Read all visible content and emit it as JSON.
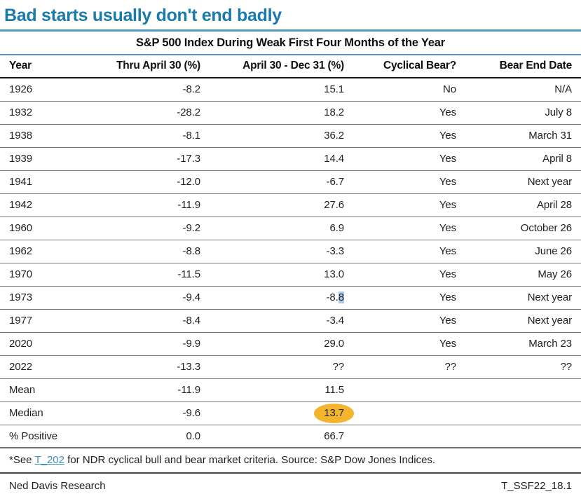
{
  "page": {
    "title": "Bad starts usually don't end badly"
  },
  "colors": {
    "accent_blue": "#1A7AA9",
    "rule_blue": "#5598BE",
    "circle_highlight": "#F4B42E",
    "selection_highlight": "#AACBE9",
    "link_blue": "#4190BC"
  },
  "chart_data": {
    "type": "table",
    "title": "S&P 500 Index During Weak First Four Months of the Year",
    "columns": [
      "Year",
      "Thru April 30 (%)",
      "April 30 - Dec 31 (%)",
      "Cyclical Bear?",
      "Bear End Date"
    ],
    "rows": [
      [
        "1926",
        "-8.2",
        "15.1",
        "No",
        "N/A"
      ],
      [
        "1932",
        "-28.2",
        "18.2",
        "Yes",
        "July 8"
      ],
      [
        "1938",
        "-8.1",
        "36.2",
        "Yes",
        "March 31"
      ],
      [
        "1939",
        "-17.3",
        "14.4",
        "Yes",
        "April 8"
      ],
      [
        "1941",
        "-12.0",
        "-6.7",
        "Yes",
        "Next year"
      ],
      [
        "1942",
        "-11.9",
        "27.6",
        "Yes",
        "April 28"
      ],
      [
        "1960",
        "-9.2",
        "6.9",
        "Yes",
        "October 26"
      ],
      [
        "1962",
        "-8.8",
        "-3.3",
        "Yes",
        "June 26"
      ],
      [
        "1970",
        "-11.5",
        "13.0",
        "Yes",
        "May 26"
      ],
      [
        "1973",
        "-9.4",
        "-8.8",
        "Yes",
        "Next year"
      ],
      [
        "1977",
        "-8.4",
        "-3.4",
        "Yes",
        "Next year"
      ],
      [
        "2020",
        "-9.9",
        "29.0",
        "Yes",
        "March 23"
      ],
      [
        "2022",
        "-13.3",
        "??",
        "??",
        "??"
      ],
      [
        "Mean",
        "-11.9",
        "11.5",
        "",
        ""
      ],
      [
        "Median",
        "-9.6",
        "13.7",
        "",
        ""
      ],
      [
        "% Positive",
        "0.0",
        "66.7",
        "",
        ""
      ]
    ],
    "annotations": [
      {
        "row": 14,
        "col": 2,
        "type": "circle"
      },
      {
        "row": 9,
        "col": 2,
        "type": "selection",
        "chars": 1
      }
    ]
  },
  "footnote": {
    "prefix": "*See ",
    "link": "T_202",
    "suffix": " for NDR cyclical bull and bear market criteria. Source: S&P Dow Jones Indices."
  },
  "footer": {
    "left": "Ned Davis Research",
    "right": "T_SSF22_18.1"
  }
}
